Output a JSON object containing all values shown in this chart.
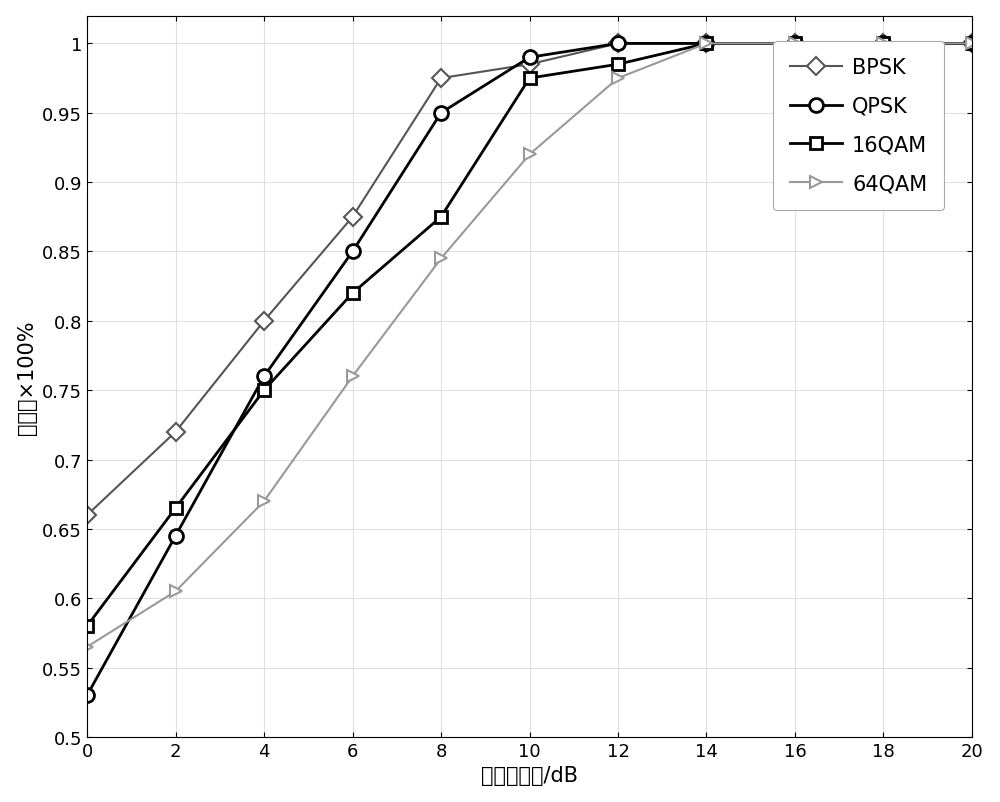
{
  "x": [
    0,
    2,
    4,
    6,
    8,
    10,
    12,
    14,
    16,
    18,
    20
  ],
  "BPSK": [
    0.66,
    0.72,
    0.8,
    0.875,
    0.975,
    0.985,
    1.0,
    1.0,
    1.0,
    1.0,
    1.0
  ],
  "QPSK": [
    0.53,
    0.645,
    0.76,
    0.85,
    0.95,
    0.99,
    1.0,
    1.0,
    1.0,
    1.0,
    1.0
  ],
  "16QAM": [
    0.58,
    0.665,
    0.75,
    0.82,
    0.875,
    0.975,
    0.985,
    1.0,
    1.0,
    1.0,
    1.0
  ],
  "64QAM": [
    0.565,
    0.605,
    0.67,
    0.76,
    0.845,
    0.92,
    0.975,
    1.0,
    1.0,
    1.0,
    1.0
  ],
  "BPSK_color": "#555555",
  "QPSK_color": "#000000",
  "16QAM_color": "#000000",
  "64QAM_color": "#999999",
  "xlabel": "广义信噪比/dB",
  "ylabel": "识别率×100%",
  "xlim": [
    0,
    20
  ],
  "ylim": [
    0.5,
    1.02
  ],
  "xticks": [
    0,
    2,
    4,
    6,
    8,
    10,
    12,
    14,
    16,
    18,
    20
  ],
  "yticks": [
    0.5,
    0.55,
    0.6,
    0.65,
    0.7,
    0.75,
    0.8,
    0.85,
    0.9,
    0.95,
    1.0
  ],
  "ytick_labels": [
    "0.5",
    "0.55",
    "0.6",
    "0.65",
    "0.7",
    "0.75",
    "0.8",
    "0.85",
    "0.9",
    "0.95",
    "1"
  ],
  "font_size": 15,
  "tick_fontsize": 13,
  "legend_loc": "upper right",
  "bg_color": "#ffffff",
  "grid_color": "#e0e0e0"
}
